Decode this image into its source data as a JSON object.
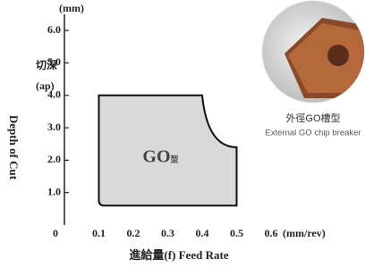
{
  "chart_data": {
    "type": "region",
    "y_unit": "(mm)",
    "y_label_zh": "切深",
    "y_label_abbr": "(ap)",
    "y_label": "Depth of Cut",
    "x_label": "進給量(f) Feed Rate",
    "x_unit": "(mm/rev)",
    "region_label": "GO",
    "region_label_sub": "型",
    "image_caption": "外徑GO槽型",
    "image_subcaption": "External GO chip breaker",
    "x": [
      0.1,
      0.4,
      0.5,
      0.5,
      0.1
    ],
    "values": [
      4.0,
      4.0,
      2.4,
      0.6,
      0.6
    ],
    "color": "#d9d9d9",
    "xlim": [
      0,
      0.7
    ],
    "ylim": [
      0,
      6.5
    ],
    "xticks": [
      0,
      0.1,
      0.2,
      0.3,
      0.4,
      0.5,
      0.6
    ],
    "yticks": [
      {
        "value": 1,
        "label": "1.0"
      },
      {
        "value": 2,
        "label": "2.0"
      },
      {
        "value": 3,
        "label": "3.0"
      },
      {
        "value": 4,
        "label": "4.0"
      },
      {
        "value": 5,
        "label": "5.0"
      },
      {
        "value": 6,
        "label": "6.0"
      }
    ]
  }
}
